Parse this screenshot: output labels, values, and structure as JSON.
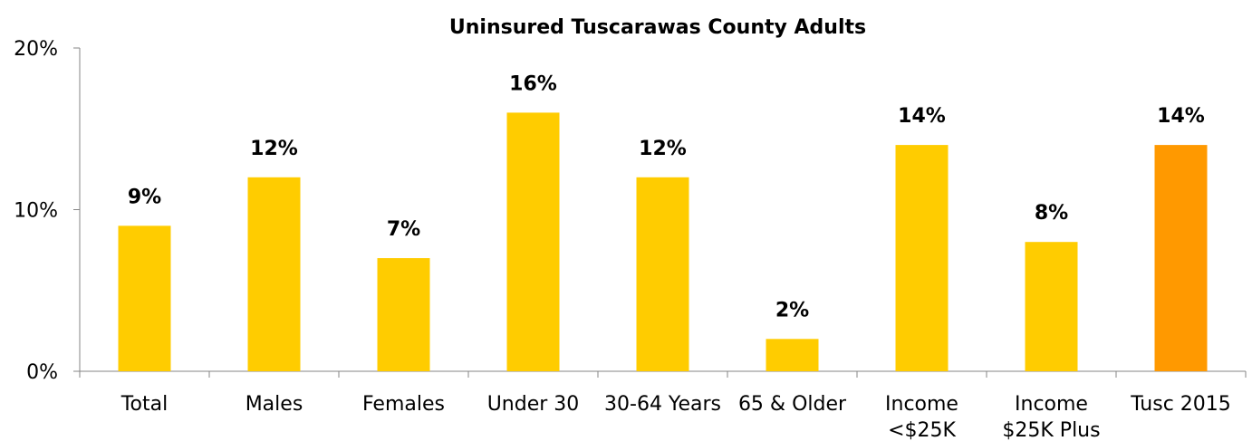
{
  "chart_data": {
    "type": "bar",
    "title": "Uninsured Tuscarawas County Adults",
    "xlabel": "",
    "ylabel": "",
    "ylim": [
      0,
      20
    ],
    "yticks": [
      {
        "value": 0,
        "label": "0%"
      },
      {
        "value": 10,
        "label": "10%"
      },
      {
        "value": 20,
        "label": "20%"
      }
    ],
    "grid": false,
    "legend": "none",
    "categories": [
      [
        "Total"
      ],
      [
        "Males"
      ],
      [
        "Females"
      ],
      [
        "Under 30"
      ],
      [
        "30-64 Years"
      ],
      [
        "65 & Older"
      ],
      [
        "Income",
        "<$25K"
      ],
      [
        "Income",
        "$25K Plus"
      ],
      [
        "Tusc 2015"
      ]
    ],
    "values": [
      9,
      12,
      7,
      16,
      12,
      2,
      14,
      8,
      14
    ],
    "data_labels": [
      "9%",
      "12%",
      "7%",
      "16%",
      "12%",
      "2%",
      "14%",
      "8%",
      "14%"
    ],
    "colors": {
      "default": "#FFCC00",
      "highlight": "#FF9900",
      "highlight_index": 8,
      "axis": "#868686"
    }
  }
}
